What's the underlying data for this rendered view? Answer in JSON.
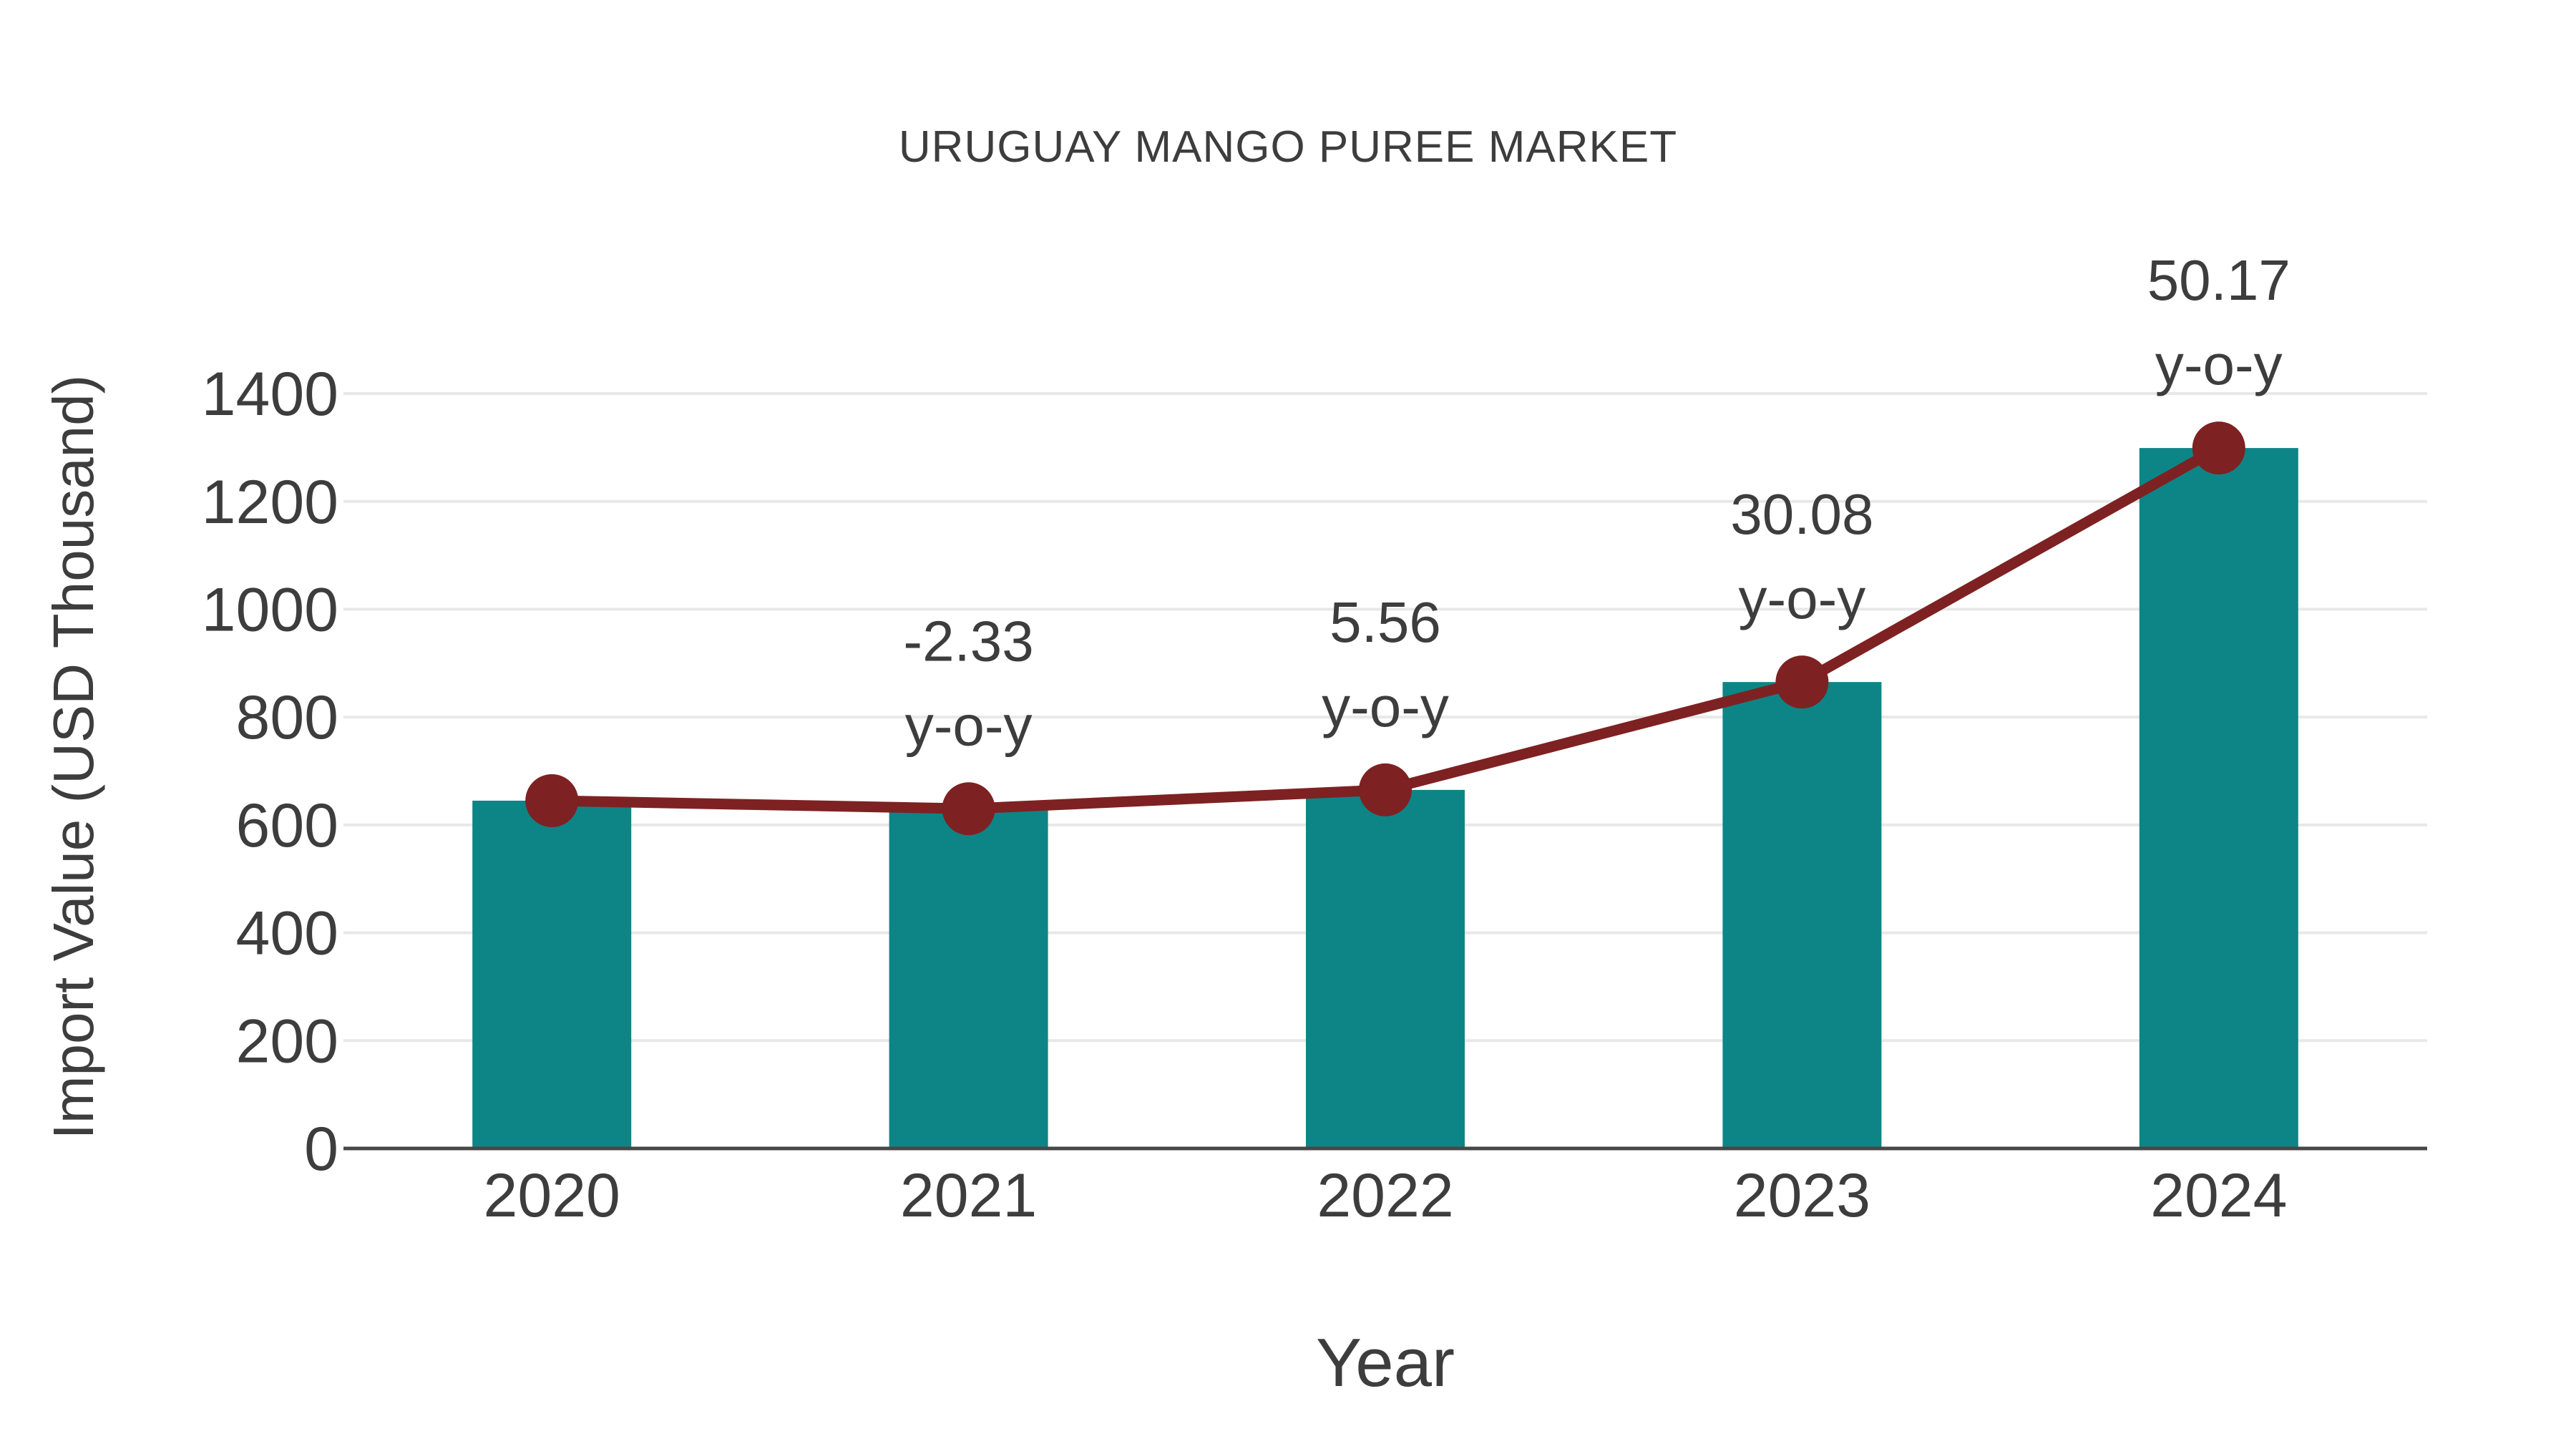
{
  "chart_data": {
    "type": "bar",
    "title": "URUGUAY MANGO PUREE MARKET",
    "xlabel": "Year",
    "ylabel": "Import Value (USD Thousand)",
    "categories": [
      "2020",
      "2021",
      "2022",
      "2023",
      "2024"
    ],
    "series": [
      {
        "name": "Import Value (USD Thousand)",
        "render": "bar",
        "values": [
          645,
          630,
          665,
          865,
          1299
        ]
      },
      {
        "name": "Import Value trend",
        "render": "line-markers",
        "values": [
          645,
          630,
          665,
          865,
          1299
        ]
      }
    ],
    "annotations": [
      {
        "category": "2021",
        "lines": [
          "-2.33",
          "y-o-y"
        ]
      },
      {
        "category": "2022",
        "lines": [
          "5.56",
          "y-o-y"
        ]
      },
      {
        "category": "2023",
        "lines": [
          "30.08",
          "y-o-y"
        ]
      },
      {
        "category": "2024",
        "lines": [
          "50.17",
          "y-o-y"
        ]
      }
    ],
    "ylim": [
      0,
      1400
    ],
    "yticks": [
      0,
      200,
      400,
      600,
      800,
      1000,
      1200,
      1400
    ],
    "grid": true,
    "legend": false,
    "colors": {
      "bar": "#0d8586",
      "line": "#7e2122",
      "marker": "#7e2122",
      "gridline": "#e8e8e8",
      "axis_line": "#474747",
      "text": "#3d3d3d",
      "background": "#ffffff"
    }
  }
}
